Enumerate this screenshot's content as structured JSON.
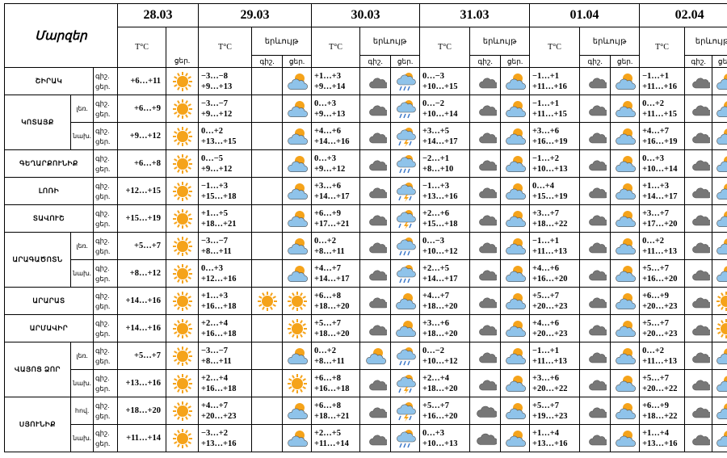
{
  "header": {
    "title": "Մարզեր",
    "temp_label": "T°C",
    "phenomena_label": "երևույթ",
    "night_short": "գիշ.",
    "day_short": "ցեր."
  },
  "dates": [
    "28.03",
    "29.03",
    "30.03",
    "31.03",
    "01.04",
    "02.04"
  ],
  "regions": [
    {
      "name": "ՇԻՐԱԿ",
      "rows": [
        {
          "sub": "",
          "labels": [
            "գիշ.",
            "ցեր."
          ],
          "temps": [
            [
              "+6…+11",
              ""
            ],
            [
              "−3…−8",
              "+9…+13"
            ],
            [
              "+1…+3",
              "+9…+14"
            ],
            [
              "0…−3",
              "+10…+15"
            ],
            [
              "−1…+1",
              "+11…+16"
            ],
            [
              "−1…+1",
              "+11…+16"
            ]
          ],
          "icons": [
            [
              "sun"
            ],
            [
              "moon",
              "sun-cloud"
            ],
            [
              "cloud-moon",
              "rain-cloud"
            ],
            [
              "cloud-moon",
              "sun-cloud"
            ],
            [
              "cloud-moon",
              "sun-cloud"
            ],
            [
              "cloud-moon",
              "sun-cloud"
            ]
          ]
        }
      ]
    },
    {
      "name": "ԿՈՏԱՅՔ",
      "rows": [
        {
          "sub": "լեռ.",
          "labels": [
            "գիշ.",
            "ցեր."
          ],
          "temps": [
            [
              "+6…+9",
              ""
            ],
            [
              "−3…−7",
              "+9…+12"
            ],
            [
              "0…+3",
              "+9…+13"
            ],
            [
              "0…−2",
              "+10…+14"
            ],
            [
              "−1…+1",
              "+11…+15"
            ],
            [
              "0…+2",
              "+11…+15"
            ]
          ],
          "icons": [
            [
              "sun"
            ],
            [
              "moon",
              "sun-cloud"
            ],
            [
              "cloud-moon",
              "rain-cloud"
            ],
            [
              "cloud-moon",
              "sun-cloud"
            ],
            [
              "cloud-moon",
              "sun-cloud"
            ],
            [
              "cloud-moon",
              "sun-cloud"
            ]
          ]
        },
        {
          "sub": "նախ.",
          "labels": [
            "գիշ.",
            "ցեր."
          ],
          "temps": [
            [
              "+9…+12",
              ""
            ],
            [
              "0…+2",
              "+13…+15"
            ],
            [
              "+4…+6",
              "+14…+16"
            ],
            [
              "+3…+5",
              "+14…+17"
            ],
            [
              "+3…+6",
              "+16…+19"
            ],
            [
              "+4…+7",
              "+16…+19"
            ]
          ],
          "icons": [
            [
              "sun"
            ],
            [
              "moon",
              "sun-cloud"
            ],
            [
              "cloud-moon",
              "storm-cloud"
            ],
            [
              "cloud-moon",
              "sun-cloud"
            ],
            [
              "cloud-moon",
              "sun-cloud"
            ],
            [
              "cloud-moon",
              "sun-cloud"
            ]
          ]
        }
      ]
    },
    {
      "name": "ԳԵՂԱՐՔՈՒՆԻՔ",
      "rows": [
        {
          "sub": "",
          "labels": [
            "գիշ.",
            "ցեր."
          ],
          "temps": [
            [
              "+6…+8",
              ""
            ],
            [
              "0…−5",
              "+9…+12"
            ],
            [
              "0…+3",
              "+9…+12"
            ],
            [
              "−2…+1",
              "+8…+10"
            ],
            [
              "−1…+2",
              "+10…+13"
            ],
            [
              "0…+3",
              "+10…+14"
            ]
          ],
          "icons": [
            [
              "sun"
            ],
            [
              "moon",
              "sun-cloud"
            ],
            [
              "cloud-moon",
              "rain-cloud"
            ],
            [
              "cloud-moon",
              "sun-cloud"
            ],
            [
              "cloud-moon",
              "sun-cloud"
            ],
            [
              "cloud-moon",
              "sun-cloud"
            ]
          ]
        }
      ]
    },
    {
      "name": "ԼՈՌԻ",
      "rows": [
        {
          "sub": "",
          "labels": [
            "գիշ.",
            "ցեր."
          ],
          "temps": [
            [
              "+12…+15",
              ""
            ],
            [
              "−1…+3",
              "+15…+18"
            ],
            [
              "+3…+6",
              "+14…+17"
            ],
            [
              "−1…+3",
              "+13…+16"
            ],
            [
              "0…+4",
              "+15…+19"
            ],
            [
              "+1…+3",
              "+14…+17"
            ]
          ],
          "icons": [
            [
              "sun"
            ],
            [
              "moon",
              "sun-cloud"
            ],
            [
              "cloud-moon",
              "storm-cloud"
            ],
            [
              "cloud-moon",
              "sun-cloud"
            ],
            [
              "cloud-moon",
              "sun-cloud"
            ],
            [
              "cloud-moon",
              "sun-cloud"
            ]
          ]
        }
      ]
    },
    {
      "name": "ՏԱՎՈՒՇ",
      "rows": [
        {
          "sub": "",
          "labels": [
            "գիշ.",
            "ցեր."
          ],
          "temps": [
            [
              "+15…+19",
              ""
            ],
            [
              "+1…+5",
              "+18…+21"
            ],
            [
              "+6…+9",
              "+17…+21"
            ],
            [
              "+2…+6",
              "+15…+18"
            ],
            [
              "+3…+7",
              "+18…+22"
            ],
            [
              "+3…+7",
              "+17…+20"
            ]
          ],
          "icons": [
            [
              "sun"
            ],
            [
              "moon",
              "sun-cloud"
            ],
            [
              "cloud-moon",
              "storm-cloud"
            ],
            [
              "cloud-moon",
              "sun-cloud"
            ],
            [
              "cloud-moon",
              "sun-cloud"
            ],
            [
              "cloud-moon",
              "sun-cloud"
            ]
          ]
        }
      ]
    },
    {
      "name": "ԱՐԱԳԱԾՈՏՆ",
      "rows": [
        {
          "sub": "լեռ.",
          "labels": [
            "գիշ.",
            "ցեր."
          ],
          "temps": [
            [
              "+5…+7",
              ""
            ],
            [
              "−3…−7",
              "+8…+11"
            ],
            [
              "0…+2",
              "+8…+11"
            ],
            [
              "0…−3",
              "+10…+12"
            ],
            [
              "−1…+1",
              "+11…+13"
            ],
            [
              "0…+2",
              "+11…+13"
            ]
          ],
          "icons": [
            [
              "sun"
            ],
            [
              "moon",
              "sun-cloud"
            ],
            [
              "cloud-moon",
              "rain-cloud"
            ],
            [
              "cloud-moon",
              "sun-cloud"
            ],
            [
              "cloud-moon",
              "sun-cloud"
            ],
            [
              "cloud-moon",
              "sun-cloud"
            ]
          ]
        },
        {
          "sub": "նախ.",
          "labels": [
            "գիշ.",
            "ցեր."
          ],
          "temps": [
            [
              "+8…+12",
              ""
            ],
            [
              "0…+3",
              "+12…+16"
            ],
            [
              "+4…+7",
              "+14…+17"
            ],
            [
              "+2…+5",
              "+14…+17"
            ],
            [
              "+4…+6",
              "+16…+20"
            ],
            [
              "+5…+7",
              "+16…+20"
            ]
          ],
          "icons": [
            [
              "sun"
            ],
            [
              "moon",
              "sun-cloud"
            ],
            [
              "cloud-moon",
              "rain-cloud"
            ],
            [
              "cloud-moon",
              "sun-cloud"
            ],
            [
              "cloud-moon",
              "sun-cloud"
            ],
            [
              "cloud-moon",
              "sun-cloud"
            ]
          ]
        }
      ]
    },
    {
      "name": "ԱՐԱՐԱՏ",
      "rows": [
        {
          "sub": "",
          "labels": [
            "գիշ.",
            "ցեր."
          ],
          "temps": [
            [
              "+14…+16",
              ""
            ],
            [
              "+1…+3",
              "+16…+18"
            ],
            [
              "+6…+8",
              "+18…+20"
            ],
            [
              "+4…+7",
              "+18…+20"
            ],
            [
              "+5…+7",
              "+20…+23"
            ],
            [
              "+6…+9",
              "+20…+23"
            ]
          ],
          "icons": [
            [
              "sun"
            ],
            [
              "sun",
              "sun"
            ],
            [
              "cloud-moon",
              "sun-cloud"
            ],
            [
              "cloud-moon",
              "sun-cloud"
            ],
            [
              "cloud-moon",
              "sun-cloud"
            ],
            [
              "cloud-moon",
              "sun"
            ]
          ]
        }
      ]
    },
    {
      "name": "ԱՐՄԱՎԻՐ",
      "rows": [
        {
          "sub": "",
          "labels": [
            "գիշ.",
            "ցեր."
          ],
          "temps": [
            [
              "+14…+16",
              ""
            ],
            [
              "+2…+4",
              "+16…+18"
            ],
            [
              "+5…+7",
              "+18…+20"
            ],
            [
              "+3…+6",
              "+18…+20"
            ],
            [
              "+4…+6",
              "+20…+23"
            ],
            [
              "+5…+7",
              "+20…+23"
            ]
          ],
          "icons": [
            [
              "sun"
            ],
            [
              "moon",
              "sun"
            ],
            [
              "cloud-moon",
              "sun-cloud"
            ],
            [
              "cloud-moon",
              "sun-cloud"
            ],
            [
              "cloud-moon",
              "sun-cloud"
            ],
            [
              "cloud-moon",
              "sun"
            ]
          ]
        }
      ]
    },
    {
      "name": "ՎԱՅՈՑ ՁՈՐ",
      "rows": [
        {
          "sub": "լեռ.",
          "labels": [
            "գիշ.",
            "ցեր."
          ],
          "temps": [
            [
              "+5…+7",
              ""
            ],
            [
              "−3…−7",
              "+8…+11"
            ],
            [
              "0…+2",
              "+8…+11"
            ],
            [
              "0…−2",
              "+10…+12"
            ],
            [
              "−1…+1",
              "+11…+13"
            ],
            [
              "0…+2",
              "+11…+13"
            ]
          ],
          "icons": [
            [
              "sun"
            ],
            [
              "moon",
              "sun-cloud"
            ],
            [
              "sun-cloud",
              "rain-cloud"
            ],
            [
              "cloud-moon",
              "sun-cloud"
            ],
            [
              "cloud-moon",
              "sun-cloud"
            ],
            [
              "cloud-moon",
              "sun-cloud"
            ]
          ]
        },
        {
          "sub": "նախ.",
          "labels": [
            "գիշ.",
            "ցեր."
          ],
          "temps": [
            [
              "+13…+16",
              ""
            ],
            [
              "+2…+4",
              "+16…+18"
            ],
            [
              "+6…+8",
              "+16…+18"
            ],
            [
              "+2…+4",
              "+18…+20"
            ],
            [
              "+3…+6",
              "+20…+22"
            ],
            [
              "+5…+7",
              "+20…+22"
            ]
          ],
          "icons": [
            [
              "sun"
            ],
            [
              "moon",
              "sun"
            ],
            [
              "cloud-moon",
              "storm-cloud"
            ],
            [
              "cloud-moon",
              "sun-cloud"
            ],
            [
              "cloud-moon",
              "sun-cloud"
            ],
            [
              "cloud-moon",
              "sun-cloud"
            ]
          ]
        }
      ]
    },
    {
      "name": "ՍՅՈՒՆԻՔ",
      "rows": [
        {
          "sub": "հով.",
          "labels": [
            "գիշ.",
            "ցեր."
          ],
          "temps": [
            [
              "+18…+20",
              ""
            ],
            [
              "+4…+7",
              "+20…+23"
            ],
            [
              "+6…+8",
              "+18…+21"
            ],
            [
              "+5…+7",
              "+16…+20"
            ],
            [
              "+5…+7",
              "+19…+23"
            ],
            [
              "+6…+9",
              "+18…+22"
            ]
          ],
          "icons": [
            [
              "sun"
            ],
            [
              "moon",
              "sun-cloud"
            ],
            [
              "cloud-moon",
              "storm-cloud"
            ],
            [
              "cloud",
              "sun-cloud"
            ],
            [
              "cloud-moon",
              "sun-cloud"
            ],
            [
              "cloud-moon",
              "sun-cloud"
            ]
          ]
        },
        {
          "sub": "նախ.",
          "labels": [
            "գիշ.",
            "ցեր."
          ],
          "temps": [
            [
              "+11…+14",
              ""
            ],
            [
              "−3…+2",
              "+13…+16"
            ],
            [
              "+2…+5",
              "+11…+14"
            ],
            [
              "0…+3",
              "+10…+13"
            ],
            [
              "+1…+4",
              "+13…+16"
            ],
            [
              "+1…+4",
              "+13…+16"
            ]
          ],
          "icons": [
            [
              "sun"
            ],
            [
              "moon",
              "sun-cloud"
            ],
            [
              "cloud-moon",
              "rain-cloud"
            ],
            [
              "cloud",
              "sun-cloud"
            ],
            [
              "cloud-moon",
              "sun-cloud"
            ],
            [
              "cloud-moon",
              "sun-cloud"
            ]
          ]
        }
      ]
    }
  ],
  "colors": {
    "sun": "#f5a31a",
    "cloud": "#777777",
    "cloud_light": "#8fc3ea",
    "moon": "#f2b229",
    "rain": "#3c78c8"
  }
}
